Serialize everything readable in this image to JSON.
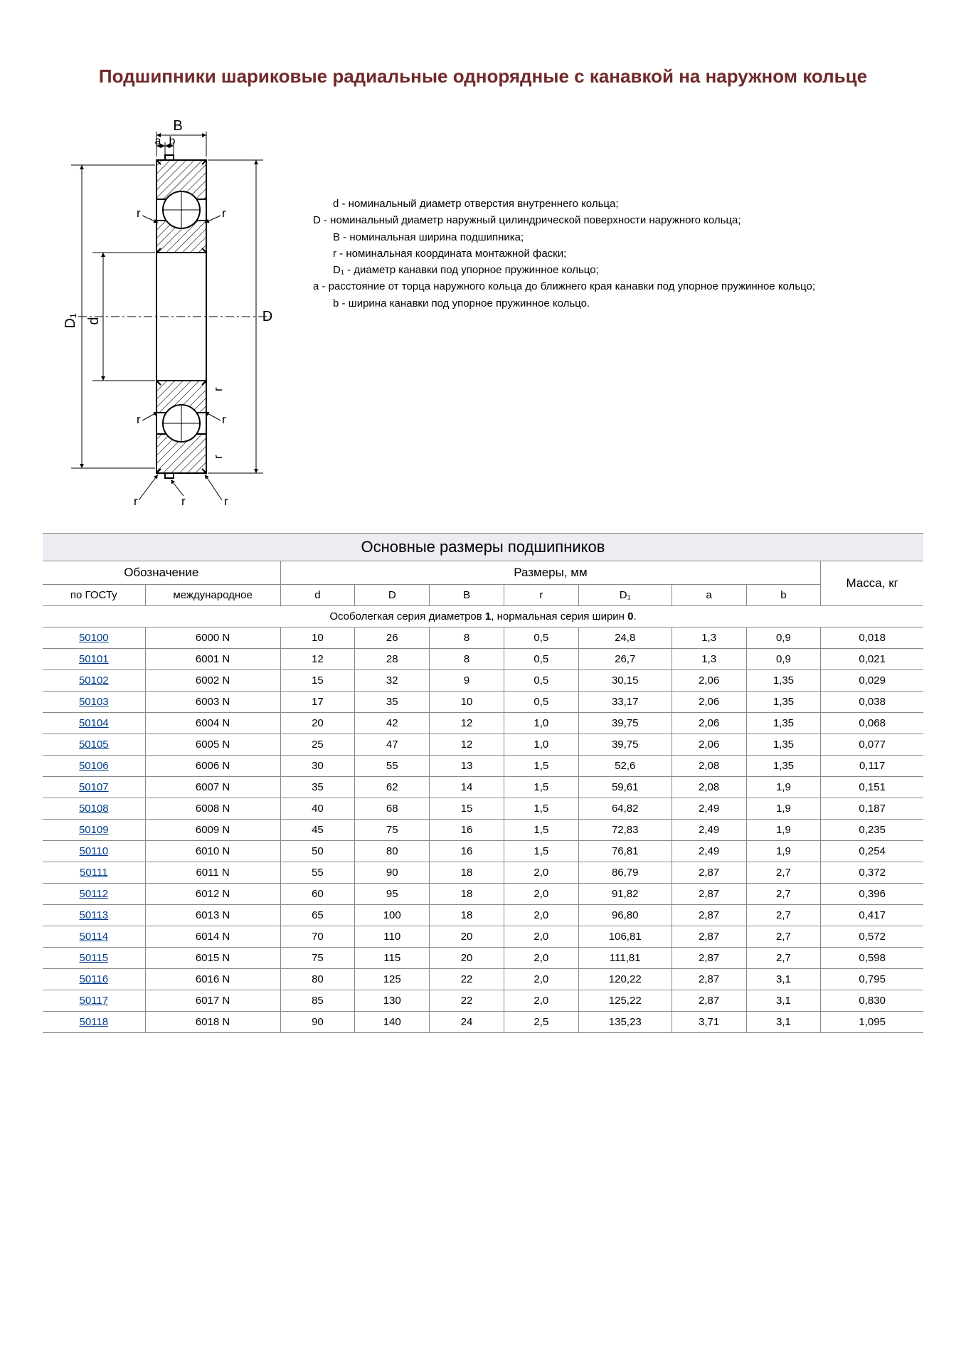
{
  "title": "Подшипники шариковые радиальные однорядные с канавкой на наружном кольце",
  "legend": {
    "d": "d - номинальный диаметр отверстия внутреннего кольца;",
    "D": "D - номинальный диаметр наружный цилиндрической поверхности наружного кольца;",
    "B": "B - номинальная ширина подшипника;",
    "r": "r - номинальная координата монтажной фаски;",
    "D1": "D₁ - диаметр канавки под упорное пружинное кольцо;",
    "a": "a - расстояние от торца наружного кольца до ближнего края канавки под упорное пружинное кольцо;",
    "b": "b - ширина канавки под упорное пружинное кольцо."
  },
  "diagram_labels": {
    "B": "B",
    "a": "a",
    "b": "b",
    "r": "r",
    "d": "d",
    "D": "D",
    "D1": "D₁"
  },
  "table": {
    "title": "Основные размеры подшипников",
    "header_group_designation": "Обозначение",
    "header_group_dimensions": "Размеры, мм",
    "header_mass": "Масса, кг",
    "columns": [
      "по ГОСТу",
      "международное",
      "d",
      "D",
      "B",
      "r",
      "D₁",
      "a",
      "b"
    ],
    "section_label_pre": "Особолегкая серия диаметров ",
    "section_bold_1": "1",
    "section_label_mid": ", нормальная серия ширин ",
    "section_bold_2": "0",
    "section_label_post": ".",
    "rows": [
      [
        "50100",
        "6000 N",
        "10",
        "26",
        "8",
        "0,5",
        "24,8",
        "1,3",
        "0,9",
        "0,018"
      ],
      [
        "50101",
        "6001 N",
        "12",
        "28",
        "8",
        "0,5",
        "26,7",
        "1,3",
        "0,9",
        "0,021"
      ],
      [
        "50102",
        "6002 N",
        "15",
        "32",
        "9",
        "0,5",
        "30,15",
        "2,06",
        "1,35",
        "0,029"
      ],
      [
        "50103",
        "6003 N",
        "17",
        "35",
        "10",
        "0,5",
        "33,17",
        "2,06",
        "1,35",
        "0,038"
      ],
      [
        "50104",
        "6004 N",
        "20",
        "42",
        "12",
        "1,0",
        "39,75",
        "2,06",
        "1,35",
        "0,068"
      ],
      [
        "50105",
        "6005 N",
        "25",
        "47",
        "12",
        "1,0",
        "39,75",
        "2,06",
        "1,35",
        "0,077"
      ],
      [
        "50106",
        "6006 N",
        "30",
        "55",
        "13",
        "1,5",
        "52,6",
        "2,08",
        "1,35",
        "0,117"
      ],
      [
        "50107",
        "6007 N",
        "35",
        "62",
        "14",
        "1,5",
        "59,61",
        "2,08",
        "1,9",
        "0,151"
      ],
      [
        "50108",
        "6008 N",
        "40",
        "68",
        "15",
        "1,5",
        "64,82",
        "2,49",
        "1,9",
        "0,187"
      ],
      [
        "50109",
        "6009 N",
        "45",
        "75",
        "16",
        "1,5",
        "72,83",
        "2,49",
        "1,9",
        "0,235"
      ],
      [
        "50110",
        "6010 N",
        "50",
        "80",
        "16",
        "1,5",
        "76,81",
        "2,49",
        "1,9",
        "0,254"
      ],
      [
        "50111",
        "6011 N",
        "55",
        "90",
        "18",
        "2,0",
        "86,79",
        "2,87",
        "2,7",
        "0,372"
      ],
      [
        "50112",
        "6012 N",
        "60",
        "95",
        "18",
        "2,0",
        "91,82",
        "2,87",
        "2,7",
        "0,396"
      ],
      [
        "50113",
        "6013 N",
        "65",
        "100",
        "18",
        "2,0",
        "96,80",
        "2,87",
        "2,7",
        "0,417"
      ],
      [
        "50114",
        "6014 N",
        "70",
        "110",
        "20",
        "2,0",
        "106,81",
        "2,87",
        "2,7",
        "0,572"
      ],
      [
        "50115",
        "6015 N",
        "75",
        "115",
        "20",
        "2,0",
        "111,81",
        "2,87",
        "2,7",
        "0,598"
      ],
      [
        "50116",
        "6016 N",
        "80",
        "125",
        "22",
        "2,0",
        "120,22",
        "2,87",
        "3,1",
        "0,795"
      ],
      [
        "50117",
        "6017 N",
        "85",
        "130",
        "22",
        "2,0",
        "125,22",
        "2,87",
        "3,1",
        "0,830"
      ],
      [
        "50118",
        "6018 N",
        "90",
        "140",
        "24",
        "2,5",
        "135,23",
        "3,71",
        "3,1",
        "1,095"
      ]
    ]
  },
  "colors": {
    "title": "#702a2a",
    "link": "#003a8c",
    "table_title_bg": "#edecf3",
    "border": "#888888"
  }
}
